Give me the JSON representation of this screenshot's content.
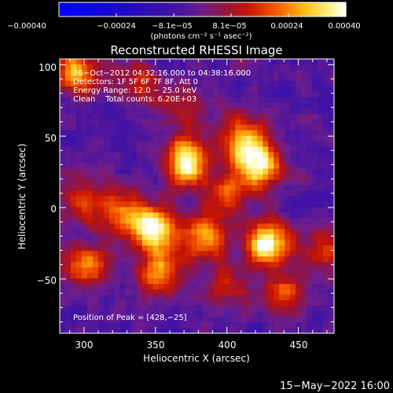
{
  "chart_data": {
    "type": "heatmap",
    "title": "Reconstructed RHESSI Image",
    "xlabel": "Heliocentric X (arcsec)",
    "ylabel": "Heliocentric Y (arcsec)",
    "xlim": [
      283,
      475
    ],
    "ylim": [
      -88,
      104
    ],
    "xticks": [
      "300",
      "350",
      "400",
      "450"
    ],
    "yticks": [
      "100",
      "50",
      "0",
      "−50"
    ],
    "colorbar": {
      "min": -0.0004,
      "max": 0.0004,
      "ticks": [
        "−0.00040",
        "−0.00024",
        "−8.1e−05",
        "8.1e−05",
        "0.00024",
        "0.00040"
      ],
      "unit_label": "(photons cm⁻² s⁻¹ asec⁻²)"
    },
    "annotations": [
      "26−Oct−2012 04:32:16.000 to 04:38:16.000",
      "Detectors: 1F 5F 6F 7F 8F, Att 0",
      "Energy Range: 12.0 − 25.0 keV",
      "Clean    Total counts: 6.20E+03",
      "Position of Peak = [428,−25]"
    ],
    "peak": {
      "x": 428,
      "y": -25
    },
    "sources": [
      {
        "x": 372,
        "y": 33,
        "amp": 1.0
      },
      {
        "x": 423,
        "y": 30,
        "amp": 1.0
      },
      {
        "x": 410,
        "y": 48,
        "amp": 0.7
      },
      {
        "x": 400,
        "y": 10,
        "amp": 0.5
      },
      {
        "x": 428,
        "y": -25,
        "amp": 1.05
      },
      {
        "x": 350,
        "y": -15,
        "amp": 0.9
      },
      {
        "x": 352,
        "y": -45,
        "amp": 0.7
      },
      {
        "x": 385,
        "y": -20,
        "amp": 0.75
      },
      {
        "x": 330,
        "y": -5,
        "amp": 0.6
      },
      {
        "x": 300,
        "y": 5,
        "amp": 0.55
      },
      {
        "x": 295,
        "y": 95,
        "amp": 0.8
      },
      {
        "x": 340,
        "y": 88,
        "amp": 0.5
      },
      {
        "x": 303,
        "y": -40,
        "amp": 0.6
      },
      {
        "x": 440,
        "y": -60,
        "amp": 0.55
      },
      {
        "x": 470,
        "y": -30,
        "amp": 0.5
      },
      {
        "x": 400,
        "y": -55,
        "amp": 0.4
      },
      {
        "x": 370,
        "y": 70,
        "amp": 0.35
      }
    ]
  },
  "footer": {
    "date": "15−May−2022 16:00"
  },
  "colors": {
    "background": "#000000",
    "text": "#ffffff",
    "colormap": "idl-red-temperature-blue"
  }
}
